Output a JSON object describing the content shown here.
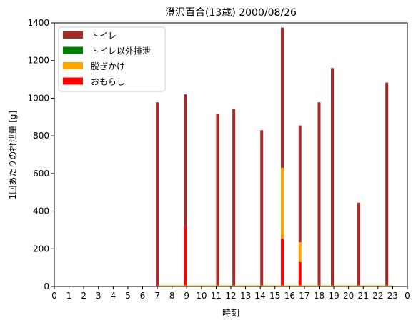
{
  "chart_data": {
    "type": "bar",
    "stacked": true,
    "title": "澄沢百合(13歳) 2000/08/26",
    "xlabel": "時刻",
    "ylabel": "1回あたりの排泄量 [g]",
    "xlim": [
      0,
      24
    ],
    "ylim": [
      0,
      1400
    ],
    "xticks": [
      "0",
      "1",
      "2",
      "3",
      "4",
      "5",
      "6",
      "7",
      "8",
      "9",
      "10",
      "11",
      "12",
      "13",
      "14",
      "15",
      "16",
      "17",
      "18",
      "19",
      "20",
      "21",
      "22",
      "23",
      "0"
    ],
    "yticks": [
      0,
      200,
      400,
      600,
      800,
      1000,
      1200,
      1400
    ],
    "legend_position": "top-left",
    "x": [
      7.0,
      8.9,
      11.1,
      12.2,
      14.1,
      15.5,
      16.7,
      18.0,
      18.9,
      20.7,
      22.6
    ],
    "series": [
      {
        "name": "おもらし",
        "color": "#ff0000",
        "values": [
          0,
          320,
          0,
          0,
          0,
          255,
          130,
          0,
          0,
          0,
          0
        ]
      },
      {
        "name": "脱ぎかけ",
        "color": "#ffa500",
        "values": [
          0,
          0,
          0,
          0,
          0,
          375,
          105,
          0,
          0,
          0,
          0
        ]
      },
      {
        "name": "トイレ以外排泄",
        "color": "#008000",
        "values": [
          0,
          0,
          0,
          0,
          0,
          0,
          0,
          0,
          0,
          0,
          0
        ]
      },
      {
        "name": "トイレ",
        "color": "#a52a2a",
        "values": [
          978,
          700,
          915,
          943,
          830,
          745,
          620,
          978,
          1160,
          445,
          1083
        ]
      }
    ],
    "legend_order": [
      "トイレ",
      "トイレ以外排泄",
      "脱ぎかけ",
      "おもらし"
    ]
  }
}
